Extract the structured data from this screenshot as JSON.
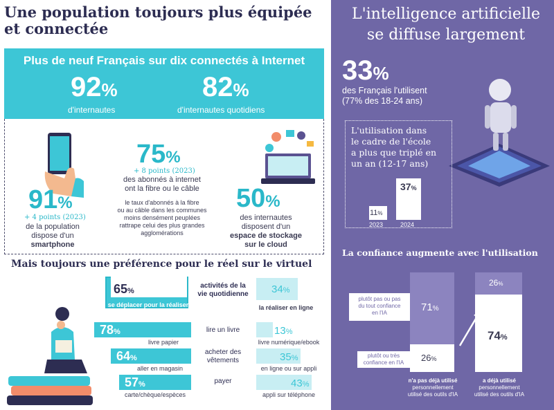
{
  "left": {
    "title_line1": "Une population toujours plus équipée",
    "title_line2": "et connectée",
    "band": {
      "heading": "Plus de neuf Français sur dix connectés à Internet",
      "stat1_value": "92",
      "stat1_unit": "%",
      "stat1_label": "d'internautes",
      "stat2_value": "82",
      "stat2_unit": "%",
      "stat2_label": "d'internautes quotidiens"
    },
    "fibre": {
      "value": "75",
      "unit": "%",
      "note": "+ 8 points (2023)",
      "desc_line1": "des abonnés à internet",
      "desc_line2": "ont la fibre ou le câble",
      "small_line1": "le taux d'abonnés à la fibre",
      "small_line2": "ou au câble dans les communes",
      "small_line3": "moins densément peuplées",
      "small_line4": "rattrape celui des plus grandes",
      "small_line5": "agglomérations"
    },
    "smartphone": {
      "value": "91",
      "unit": "%",
      "note": "+ 4 points (2023)",
      "desc_line1": "de la population",
      "desc_line2": "dispose d'un",
      "desc_bold": "smartphone"
    },
    "cloud": {
      "value": "50",
      "unit": "%",
      "desc_line1": "des internautes",
      "desc_line2": "disposent d'un",
      "desc_bold1": "espace de stockage",
      "desc_bold2": "sur le cloud"
    },
    "preference": {
      "title": "Mais toujours une préférence pour le réel sur le virtuel",
      "rows": [
        {
          "left_value": "65",
          "left_label": "se déplacer pour la réaliser",
          "center_line1": "activités de la",
          "center_line2": "vie quotidienne",
          "right_value": "34",
          "right_label": "la réaliser en ligne"
        },
        {
          "left_value": "78",
          "left_label": "livre papier",
          "center_line1": "lire un livre",
          "center_line2": "",
          "right_value": "13",
          "right_label": "livre numérique/ebook"
        },
        {
          "left_value": "64",
          "left_label": "aller en magasin",
          "center_line1": "acheter des",
          "center_line2": "vêtements",
          "right_value": "35",
          "right_label": "en ligne ou sur appli"
        },
        {
          "left_value": "57",
          "left_label": "carte/chèque/espèces",
          "center_line1": "payer",
          "center_line2": "",
          "right_value": "43",
          "right_label": "appli sur téléphone"
        }
      ],
      "unit": "%"
    }
  },
  "right": {
    "title_line1": "L'intelligence artificielle",
    "title_line2": "se diffuse largement",
    "stat_value": "33",
    "stat_unit": "%",
    "stat_desc_line1": "des Français l'utilisent",
    "stat_desc_line2": "(77% des 18-24 ans)",
    "school": {
      "line1": "L'utilisation dans",
      "line2": "le cadre de l'école",
      "line3": "a plus que triplé en",
      "line4": "un an (12-17 ans)",
      "bars": [
        {
          "year": "2023",
          "value": "11",
          "fraction": 0.11
        },
        {
          "year": "2024",
          "value": "37",
          "fraction": 0.37
        }
      ],
      "unit": "%"
    },
    "trust": {
      "title": "La confiance augmente avec l'utilisation",
      "label_top_line1": "plutôt pas ou pas",
      "label_top_line2": "du tout confiance",
      "label_top_line3": "en l'IA",
      "label_bottom_line1": "plutôt ou très",
      "label_bottom_line2": "confiance en l'IA",
      "col1": {
        "top": "71",
        "bottom": "26",
        "caption_bold": "n'a pas déjà utilisé",
        "caption_line2": "personnellement",
        "caption_line3": "utilisé des outils d'IA"
      },
      "col2": {
        "top": "26",
        "bottom": "74",
        "caption_bold": "a déjà utilisé",
        "caption_line2": "personnellement",
        "caption_line3": "utilisé des outils d'IA"
      },
      "unit": "%"
    }
  },
  "colors": {
    "teal": "#3dc6d6",
    "light_teal": "#c8eef3",
    "purple": "#6f67a6",
    "dark_purple": "#5a5291",
    "navy": "#2d2d52"
  },
  "icons": [
    "smartphone-hand-icon",
    "laptop-cloud-icon",
    "reading-woman-icon",
    "robot-chip-icon",
    "arrow-up-icon"
  ]
}
